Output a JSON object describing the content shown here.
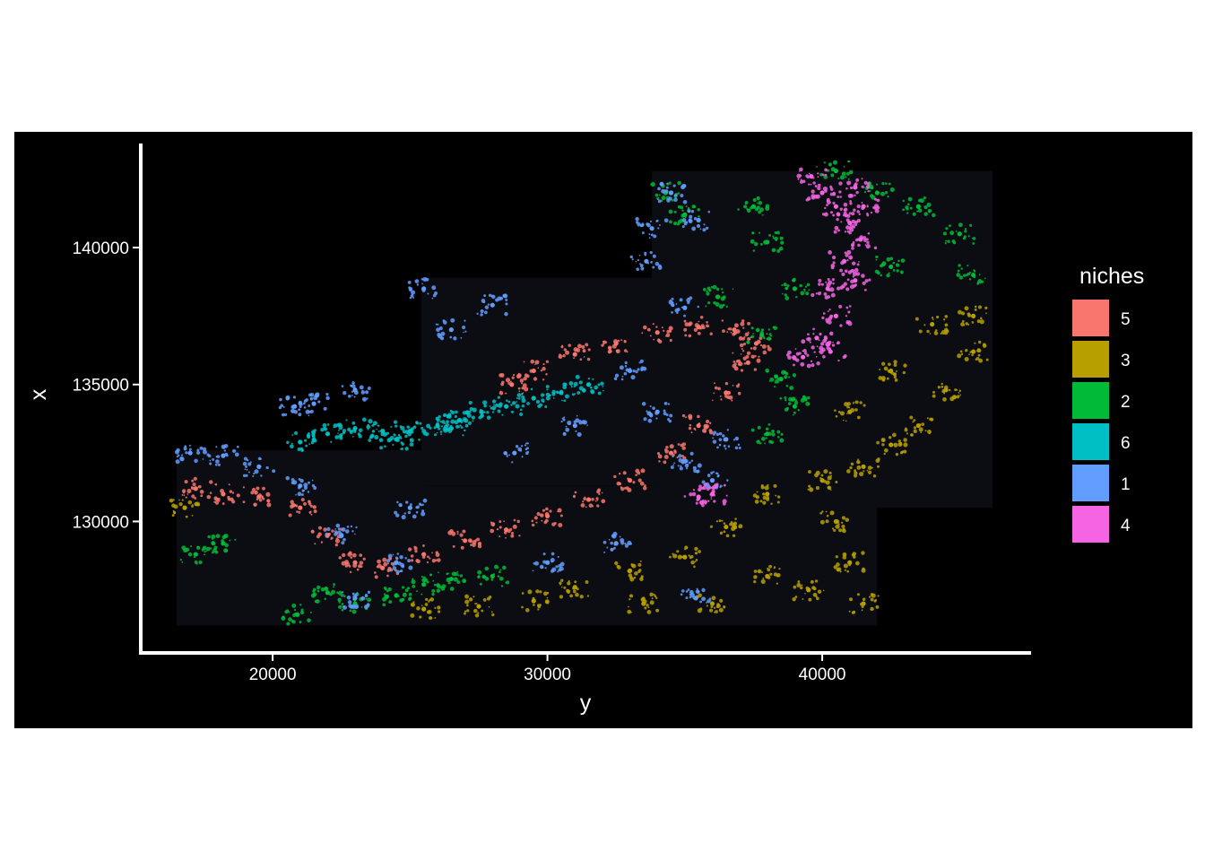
{
  "chart_data": {
    "type": "scatter",
    "title": "",
    "xlabel": "y",
    "ylabel": "x",
    "xlim": [
      15200,
      47600
    ],
    "ylim": [
      125200,
      143800
    ],
    "x_ticks": [
      20000,
      30000,
      40000
    ],
    "x_tick_labels": [
      "20000",
      "30000",
      "40000"
    ],
    "y_ticks": [
      130000,
      135000,
      140000
    ],
    "y_tick_labels": [
      "130000",
      "135000",
      "140000"
    ],
    "grid": false,
    "background": "#000000",
    "legend": {
      "title": "niches",
      "position": "right",
      "entries": [
        {
          "label": "5",
          "color": "#F8766D"
        },
        {
          "label": "3",
          "color": "#B79F00"
        },
        {
          "label": "2",
          "color": "#00BA38"
        },
        {
          "label": "6",
          "color": "#00BFC4"
        },
        {
          "label": "1",
          "color": "#619CFF"
        },
        {
          "label": "4",
          "color": "#F564E3"
        }
      ]
    },
    "series": [
      {
        "name": "5",
        "color": "#F8766D",
        "points": [
          [
            21000,
            130500
          ],
          [
            22000,
            129500
          ],
          [
            23000,
            128500
          ],
          [
            24000,
            128300
          ],
          [
            25500,
            128800
          ],
          [
            27000,
            129300
          ],
          [
            28500,
            129700
          ],
          [
            30000,
            130200
          ],
          [
            31500,
            130800
          ],
          [
            33000,
            131500
          ],
          [
            34500,
            132500
          ],
          [
            35500,
            133500
          ],
          [
            36500,
            134700
          ],
          [
            37300,
            135800
          ],
          [
            37600,
            136500
          ],
          [
            36800,
            137000
          ],
          [
            35500,
            137100
          ],
          [
            34000,
            136900
          ],
          [
            32500,
            136500
          ],
          [
            31000,
            136100
          ],
          [
            29500,
            135500
          ],
          [
            28700,
            135000
          ],
          [
            17200,
            131200
          ],
          [
            18200,
            131000
          ],
          [
            19500,
            130900
          ]
        ]
      },
      {
        "name": "3",
        "color": "#B79F00",
        "points": [
          [
            16800,
            130500
          ],
          [
            25500,
            126800
          ],
          [
            27500,
            126900
          ],
          [
            29500,
            127100
          ],
          [
            31000,
            127600
          ],
          [
            33000,
            128200
          ],
          [
            35000,
            128700
          ],
          [
            36000,
            127000
          ],
          [
            38000,
            128000
          ],
          [
            39500,
            127500
          ],
          [
            40500,
            130000
          ],
          [
            41000,
            128500
          ],
          [
            41500,
            127000
          ],
          [
            40000,
            131500
          ],
          [
            41500,
            132000
          ],
          [
            42500,
            132800
          ],
          [
            43500,
            133500
          ],
          [
            44500,
            134800
          ],
          [
            45500,
            136200
          ],
          [
            45500,
            137500
          ],
          [
            44000,
            137200
          ],
          [
            42500,
            135500
          ],
          [
            41000,
            134000
          ],
          [
            38000,
            131000
          ],
          [
            36500,
            129800
          ],
          [
            33500,
            127000
          ]
        ]
      },
      {
        "name": "2",
        "color": "#00BA38",
        "points": [
          [
            17200,
            128800
          ],
          [
            18200,
            129200
          ],
          [
            20900,
            126600
          ],
          [
            22000,
            127400
          ],
          [
            23000,
            127000
          ],
          [
            24500,
            127300
          ],
          [
            25500,
            127700
          ],
          [
            26500,
            127900
          ],
          [
            28000,
            128000
          ],
          [
            38000,
            133200
          ],
          [
            39000,
            134200
          ],
          [
            38500,
            135200
          ],
          [
            37800,
            136800
          ],
          [
            36200,
            138200
          ],
          [
            38000,
            140200
          ],
          [
            37500,
            141500
          ],
          [
            40500,
            142800
          ],
          [
            42000,
            142000
          ],
          [
            43500,
            141500
          ],
          [
            45000,
            140500
          ],
          [
            45500,
            139000
          ],
          [
            42500,
            139300
          ],
          [
            39000,
            138500
          ],
          [
            35000,
            141200
          ],
          [
            34300,
            142000
          ]
        ]
      },
      {
        "name": "6",
        "color": "#00BFC4",
        "points": [
          [
            21000,
            132900
          ],
          [
            22000,
            133200
          ],
          [
            23000,
            133400
          ],
          [
            24000,
            133300
          ],
          [
            25000,
            133300
          ],
          [
            26000,
            133500
          ],
          [
            26800,
            133700
          ],
          [
            27600,
            134000
          ],
          [
            28500,
            134200
          ],
          [
            29500,
            134500
          ],
          [
            30500,
            134700
          ],
          [
            31500,
            135000
          ],
          [
            26500,
            133400
          ],
          [
            24500,
            133000
          ]
        ]
      },
      {
        "name": "1",
        "color": "#619CFF",
        "points": [
          [
            17000,
            132500
          ],
          [
            18200,
            132400
          ],
          [
            19500,
            132000
          ],
          [
            21000,
            131300
          ],
          [
            22500,
            129500
          ],
          [
            23000,
            127200
          ],
          [
            24500,
            128500
          ],
          [
            25000,
            130500
          ],
          [
            25500,
            138500
          ],
          [
            26500,
            137000
          ],
          [
            28000,
            137900
          ],
          [
            28800,
            132500
          ],
          [
            30000,
            128500
          ],
          [
            32500,
            129200
          ],
          [
            31000,
            133500
          ],
          [
            33000,
            135500
          ],
          [
            34000,
            134000
          ],
          [
            35000,
            132200
          ],
          [
            35400,
            127200
          ],
          [
            35000,
            137800
          ],
          [
            33600,
            139500
          ],
          [
            34500,
            142000
          ],
          [
            35500,
            141000
          ],
          [
            33800,
            140700
          ],
          [
            36000,
            131500
          ],
          [
            23000,
            134800
          ],
          [
            21500,
            134300
          ],
          [
            20800,
            134200
          ],
          [
            36500,
            133000
          ]
        ]
      },
      {
        "name": "4",
        "color": "#F564E3",
        "points": [
          [
            39600,
            142600
          ],
          [
            40000,
            142000
          ],
          [
            40500,
            141500
          ],
          [
            41000,
            140900
          ],
          [
            41400,
            140300
          ],
          [
            40800,
            139500
          ],
          [
            40200,
            138500
          ],
          [
            41200,
            138800
          ],
          [
            40500,
            137500
          ],
          [
            39800,
            136700
          ],
          [
            39300,
            136000
          ],
          [
            40300,
            136200
          ],
          [
            36000,
            131000
          ],
          [
            35500,
            130900
          ],
          [
            41500,
            141500
          ],
          [
            41200,
            142200
          ]
        ]
      }
    ]
  }
}
